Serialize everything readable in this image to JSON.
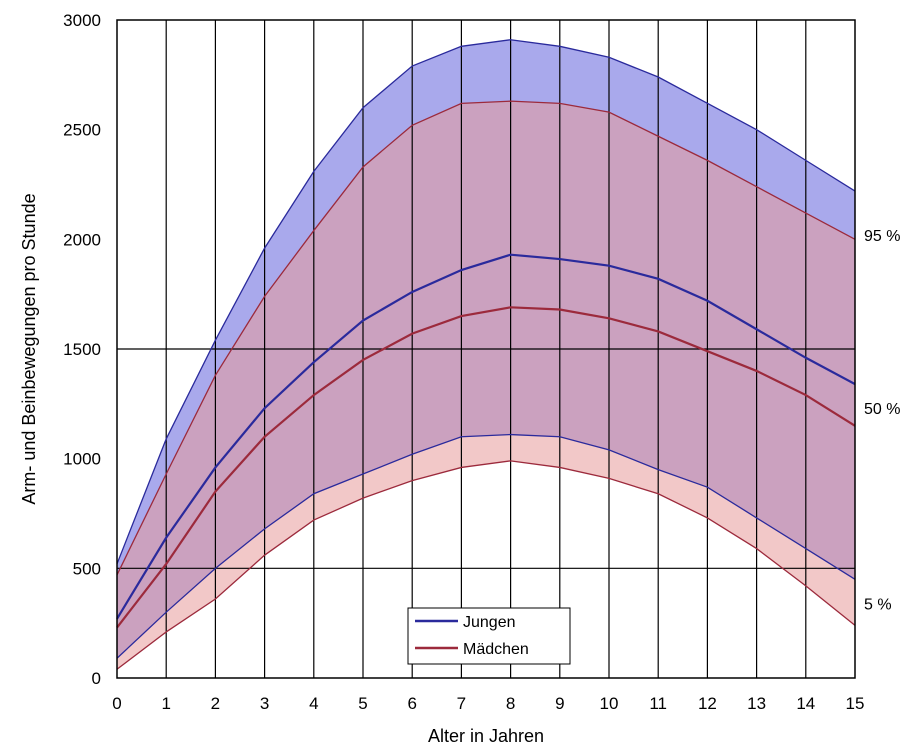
{
  "chart_data": {
    "type": "area",
    "xlabel": "Alter in Jahren",
    "ylabel": "Arm- und Beinbewegungen pro Stunde",
    "xlim": [
      0,
      15
    ],
    "ylim": [
      0,
      3000
    ],
    "x": [
      0,
      1,
      2,
      3,
      4,
      5,
      6,
      7,
      8,
      9,
      10,
      11,
      12,
      13,
      14,
      15
    ],
    "x_ticks": [
      "0",
      "1",
      "2",
      "3",
      "4",
      "5",
      "6",
      "7",
      "8",
      "9",
      "10",
      "11",
      "12",
      "13",
      "14",
      "15"
    ],
    "y_ticks": [
      "0",
      "500",
      "1000",
      "1500",
      "2000",
      "2500",
      "3000"
    ],
    "y_tick_values": [
      0,
      500,
      1000,
      1500,
      2000,
      2500,
      3000
    ],
    "grid": "vertical at each x tick, horizontal at 1500 and 500",
    "percentile_labels": [
      "95 %",
      "50 %",
      "5 %"
    ],
    "percentile_label_values": [
      2020,
      1230,
      340
    ],
    "series": [
      {
        "name": "Jungen",
        "color": "#2a2a9c",
        "fill": "#8c8ce6",
        "p95": [
          520,
          1090,
          1540,
          1960,
          2310,
          2600,
          2790,
          2880,
          2910,
          2880,
          2830,
          2740,
          2620,
          2500,
          2360,
          2220
        ],
        "p50": [
          270,
          640,
          960,
          1230,
          1440,
          1630,
          1760,
          1860,
          1930,
          1910,
          1880,
          1820,
          1720,
          1590,
          1460,
          1340
        ],
        "p5": [
          90,
          300,
          500,
          680,
          840,
          930,
          1020,
          1100,
          1110,
          1100,
          1040,
          950,
          870,
          730,
          590,
          450
        ]
      },
      {
        "name": "Mädchen",
        "color": "#9c2a3c",
        "fill": "#e89a9a",
        "p95": [
          470,
          930,
          1380,
          1740,
          2040,
          2330,
          2520,
          2620,
          2630,
          2620,
          2580,
          2470,
          2360,
          2240,
          2120,
          2000
        ],
        "p50": [
          230,
          520,
          850,
          1100,
          1290,
          1450,
          1570,
          1650,
          1690,
          1680,
          1640,
          1580,
          1490,
          1400,
          1290,
          1150
        ],
        "p5": [
          40,
          210,
          360,
          560,
          720,
          820,
          900,
          960,
          990,
          960,
          910,
          840,
          730,
          590,
          420,
          240
        ]
      }
    ],
    "legend": {
      "placement": "bottom-center",
      "entries": [
        "Jungen",
        "Mädchen"
      ]
    }
  }
}
